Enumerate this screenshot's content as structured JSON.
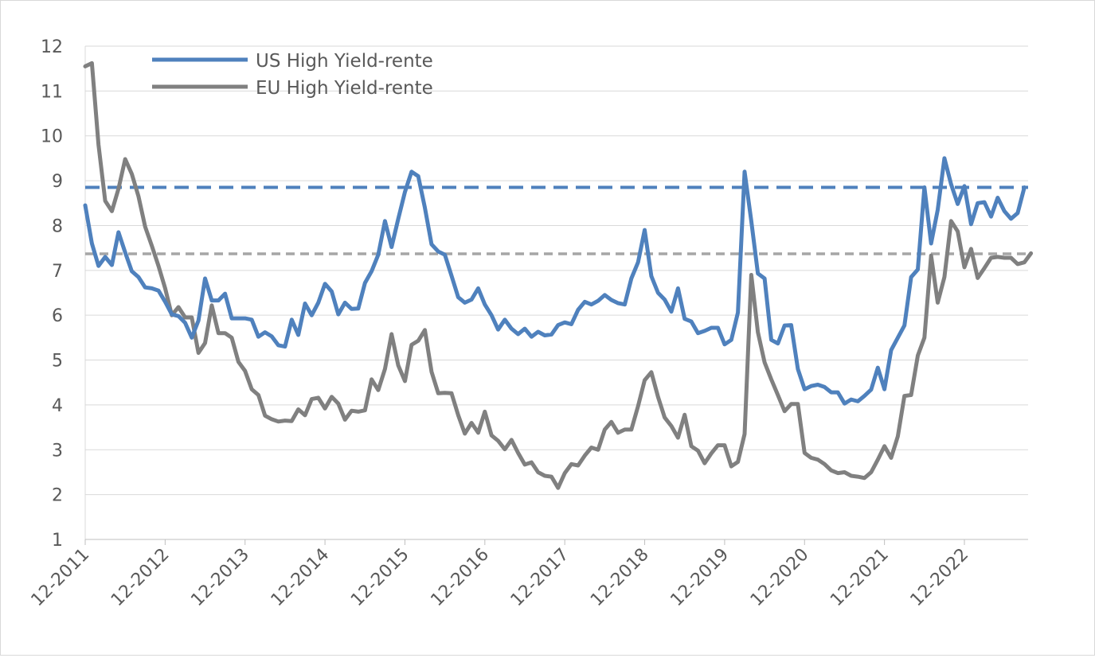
{
  "chart_data": {
    "type": "line",
    "title": "",
    "xlabel": "",
    "ylabel": "",
    "ylim": [
      1,
      12
    ],
    "yticks": [
      1,
      2,
      3,
      4,
      5,
      6,
      7,
      8,
      9,
      10,
      11,
      12
    ],
    "x_start": "12-2011",
    "x_step": "month",
    "xticks": [
      {
        "label": "12-2011",
        "index": 0
      },
      {
        "label": "12-2012",
        "index": 12
      },
      {
        "label": "12-2013",
        "index": 24
      },
      {
        "label": "12-2014",
        "index": 36
      },
      {
        "label": "12-2015",
        "index": 48
      },
      {
        "label": "12-2016",
        "index": 60
      },
      {
        "label": "12-2017",
        "index": 72
      },
      {
        "label": "12-2018",
        "index": 84
      },
      {
        "label": "12-2019",
        "index": 96
      },
      {
        "label": "12-2020",
        "index": 108
      },
      {
        "label": "12-2021",
        "index": 120
      },
      {
        "label": "12-2022",
        "index": 132
      }
    ],
    "legend_position": "top-left",
    "series": [
      {
        "name": "US High Yield-rente",
        "color": "#4f81bd",
        "values": [
          8.45,
          7.6,
          7.1,
          7.3,
          7.12,
          7.85,
          7.4,
          6.98,
          6.85,
          6.62,
          6.6,
          6.55,
          6.3,
          6.02,
          5.98,
          5.83,
          5.5,
          5.88,
          6.82,
          6.33,
          6.33,
          6.48,
          5.93,
          5.93,
          5.93,
          5.9,
          5.52,
          5.62,
          5.53,
          5.33,
          5.3,
          5.9,
          5.56,
          6.26,
          6.0,
          6.28,
          6.7,
          6.53,
          6.02,
          6.28,
          6.14,
          6.15,
          6.72,
          6.98,
          7.35,
          8.1,
          7.52,
          8.15,
          8.75,
          9.2,
          9.1,
          8.4,
          7.58,
          7.42,
          7.35,
          6.88,
          6.4,
          6.28,
          6.35,
          6.6,
          6.24,
          6.0,
          5.68,
          5.9,
          5.7,
          5.58,
          5.7,
          5.52,
          5.63,
          5.55,
          5.57,
          5.78,
          5.84,
          5.8,
          6.12,
          6.3,
          6.24,
          6.32,
          6.45,
          6.34,
          6.27,
          6.24,
          6.82,
          7.18,
          7.9,
          6.87,
          6.5,
          6.35,
          6.08,
          6.6,
          5.92,
          5.86,
          5.6,
          5.65,
          5.72,
          5.72,
          5.35,
          5.45,
          6.06,
          9.2,
          8.1,
          6.93,
          6.82,
          5.45,
          5.37,
          5.77,
          5.78,
          4.8,
          4.35,
          4.42,
          4.45,
          4.4,
          4.28,
          4.28,
          4.03,
          4.12,
          4.08,
          4.2,
          4.34,
          4.83,
          4.35,
          5.22,
          5.5,
          5.77,
          6.85,
          7.02,
          8.85,
          7.6,
          8.35,
          9.5,
          8.92,
          8.48,
          8.88,
          8.03,
          8.5,
          8.52,
          8.2,
          8.62,
          8.32,
          8.15,
          8.28,
          8.85
        ]
      },
      {
        "name": "EU High Yield-rente",
        "color": "#808080",
        "values": [
          11.55,
          11.62,
          9.8,
          8.55,
          8.32,
          8.82,
          9.48,
          9.15,
          8.65,
          7.97,
          7.55,
          7.1,
          6.6,
          6.0,
          6.18,
          5.95,
          5.95,
          5.16,
          5.38,
          6.22,
          5.6,
          5.6,
          5.5,
          4.96,
          4.76,
          4.35,
          4.22,
          3.76,
          3.68,
          3.63,
          3.65,
          3.64,
          3.9,
          3.77,
          4.13,
          4.16,
          3.92,
          4.18,
          4.03,
          3.67,
          3.87,
          3.85,
          3.88,
          4.57,
          4.33,
          4.8,
          5.58,
          4.88,
          4.53,
          5.34,
          5.43,
          5.67,
          4.74,
          4.26,
          4.27,
          4.26,
          3.77,
          3.36,
          3.6,
          3.38,
          3.85,
          3.32,
          3.2,
          3.01,
          3.22,
          2.93,
          2.67,
          2.72,
          2.5,
          2.42,
          2.4,
          2.15,
          2.48,
          2.68,
          2.65,
          2.87,
          3.05,
          3.0,
          3.45,
          3.62,
          3.38,
          3.45,
          3.45,
          3.97,
          4.55,
          4.73,
          4.18,
          3.72,
          3.53,
          3.27,
          3.78,
          3.08,
          2.98,
          2.7,
          2.92,
          3.1,
          3.1,
          2.63,
          2.73,
          3.35,
          6.9,
          5.62,
          4.95,
          4.57,
          4.22,
          3.86,
          4.02,
          4.02,
          2.93,
          2.82,
          2.78,
          2.68,
          2.54,
          2.48,
          2.5,
          2.42,
          2.4,
          2.37,
          2.5,
          2.78,
          3.08,
          2.82,
          3.3,
          4.2,
          4.22,
          5.1,
          5.5,
          7.33,
          6.28,
          6.85,
          8.1,
          7.87,
          7.07,
          7.48,
          6.83,
          7.05,
          7.28,
          7.3,
          7.28,
          7.28,
          7.14,
          7.18,
          7.38
        ]
      }
    ],
    "reference_lines": [
      {
        "series": "US High Yield-rente",
        "value": 8.85,
        "color": "#4f81bd",
        "style": "dashed"
      },
      {
        "series": "EU High Yield-rente",
        "value": 7.37,
        "color": "#a6a6a6",
        "style": "dashed"
      }
    ]
  }
}
